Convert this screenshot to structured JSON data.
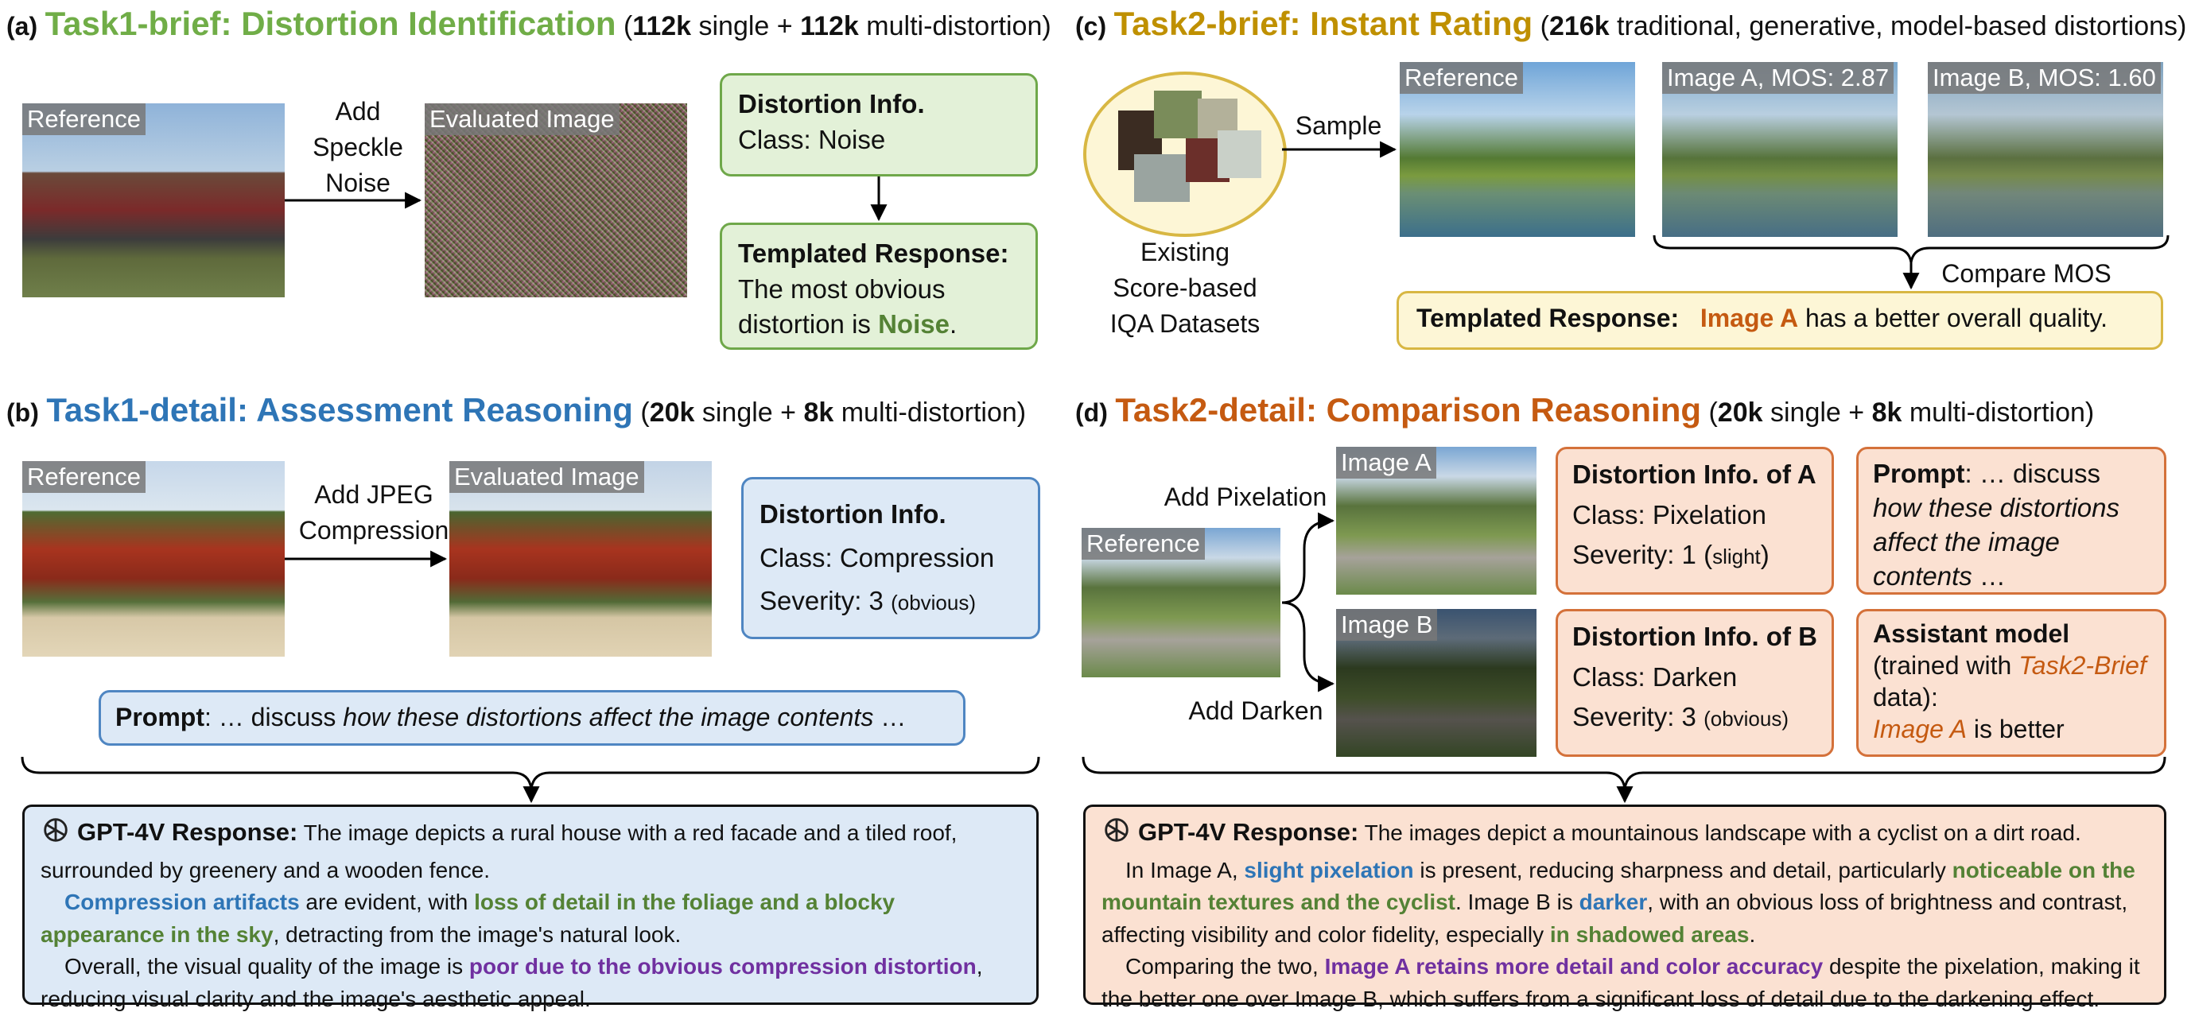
{
  "panel_a": {
    "tag": "(a)",
    "title": "Task1-brief: Distortion Identification",
    "sub_n1": "112k",
    "sub_t1": " single + ",
    "sub_n2": "112k",
    "sub_t2": " multi-distortion)",
    "ref_label": "Reference",
    "arrow_label": "Add\nSpeckle\nNoise",
    "eval_label": "Evaluated Image",
    "info_title": "Distortion Info.",
    "info_class": "Class:  Noise",
    "tmpl_title": "Templated Response:",
    "tmpl_text1": "The most obvious distortion is ",
    "tmpl_highlight": "Noise",
    "tmpl_end": "."
  },
  "panel_b": {
    "tag": "(b)",
    "title": "Task1-detail: Assessment Reasoning",
    "sub_n1": "20k",
    "sub_t1": " single + ",
    "sub_n2": "8k",
    "sub_t2": " multi-distortion)",
    "ref_label": "Reference",
    "arrow_label": "Add JPEG\nCompression",
    "eval_label": "Evaluated Image",
    "info_title": "Distortion Info.",
    "info_class": "Class:  Compression",
    "info_sev": "Severity:  3 ",
    "info_sev_note": "(obvious)",
    "prompt_label": "Prompt",
    "prompt_pre": ": … discuss ",
    "prompt_it": "how these distortions affect the image contents",
    "prompt_end": " …",
    "resp_title": "GPT-4V Response:",
    "resp_l1": "   The image depicts a rural house with a red facade and a tiled roof, surrounded by greenery and a wooden fence.",
    "resp_b1": "Compression artifacts",
    "resp_t2": " are evident, with ",
    "resp_g1": "loss of detail in the foliage and a blocky appearance in the sky",
    "resp_t3": ", detracting from the image's natural look.",
    "resp_t4": "Overall, the visual quality of the image is ",
    "resp_p1": "poor due to the obvious compression distortion",
    "resp_t5": ", reducing visual clarity and the image's aesthetic appeal."
  },
  "panel_c": {
    "tag": "(c)",
    "title": "Task2-brief: Instant Rating",
    "sub_n1": "216k",
    "sub_t1": " traditional, generative, model-based distortions)",
    "datasets_label": "Existing\nScore-based\nIQA Datasets",
    "sample_label": "Sample",
    "ref_label": "Reference",
    "imgA_label": "Image A, MOS: 2.87",
    "imgB_label": "Image B, MOS: 1.60",
    "compare_label": "Compare MOS",
    "tmpl_title": "Templated Response:",
    "tmpl_highlight": "Image A",
    "tmpl_text": " has a better overall quality."
  },
  "panel_d": {
    "tag": "(d)",
    "title": "Task2-detail: Comparison Reasoning",
    "sub_n1": "20k",
    "sub_t1": " single + ",
    "sub_n2": "8k",
    "sub_t2": " multi-distortion)",
    "add_pix": "Add Pixelation",
    "add_dark": "Add Darken",
    "ref_label": "Reference",
    "imgA_label": "Image A",
    "imgB_label": "Image B",
    "infoA_title": "Distortion Info. of A",
    "infoA_class": "Class:  Pixelation",
    "infoA_sev": "Severity:  1 ",
    "infoA_sev_open": "(",
    "infoA_sev_note": "slight",
    "infoA_sev_close": ")",
    "infoB_title": "Distortion Info. of B",
    "infoB_class": "Class:  Darken",
    "infoB_sev": "Severity:  3 ",
    "infoB_sev_note": "(obvious)",
    "prompt_label": "Prompt",
    "prompt_pre": ":  … discuss ",
    "prompt_it": "how these distortions affect the image contents",
    "prompt_end": " …",
    "assist_title": "Assistant model",
    "assist_t1": "(trained with ",
    "assist_it": "Task2-Brief",
    "assist_t2": " data):",
    "assist_it2": "Image A",
    "assist_t3": " is better",
    "resp_title": "GPT-4V Response:",
    "resp_l1": "   The images depict a mountainous landscape with a cyclist on a dirt road.",
    "resp_t1": "In Image A, ",
    "resp_b1": "slight pixelation",
    "resp_t2": "  is present, reducing sharpness and detail, particularly ",
    "resp_g1": "noticeable on the mountain textures and the cyclist",
    "resp_t3": ". Image B is ",
    "resp_b2": "darker",
    "resp_t4": ", with an obvious loss of brightness and contrast, affecting visibility and color fidelity, especially ",
    "resp_g2": "in shadowed areas",
    "resp_t5": ".",
    "resp_t6": "Comparing the two, ",
    "resp_p1": "Image A retains more detail and color accuracy",
    "resp_t7": " despite the pixelation, making it the better one over Image B, which suffers from a significant loss of detail due to the darkening effect."
  },
  "colors": {
    "green": "#548235",
    "blue": "#2e75b6",
    "gold": "#bf9000",
    "orange": "#c55a11",
    "purple": "#7030a0"
  }
}
